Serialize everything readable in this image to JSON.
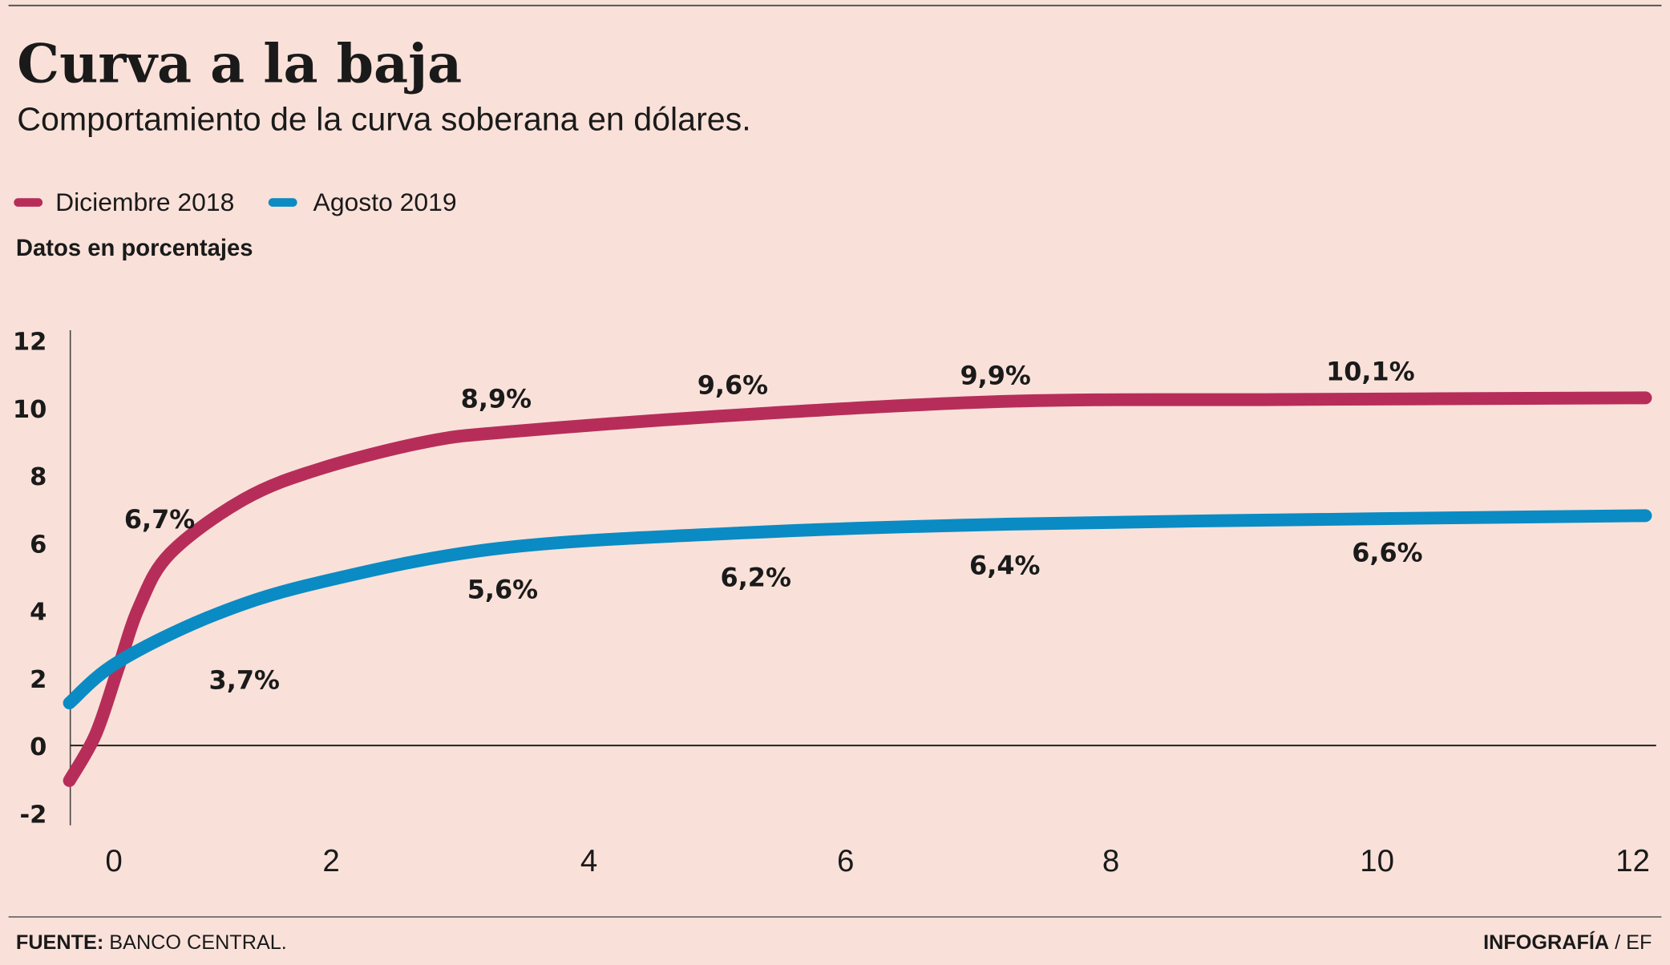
{
  "chart_data": {
    "type": "line",
    "title": "Curva a la baja",
    "subtitle": "Comportamiento de la curva soberana en dólares.",
    "ylabel": "Datos en porcentajes",
    "xlabel": "",
    "ylim": [
      -2,
      12
    ],
    "xlim": [
      -0.4,
      12
    ],
    "y_ticks": [
      "12",
      "10",
      "8",
      "6",
      "4",
      "2",
      "0",
      "-2"
    ],
    "y_tick_values": [
      12,
      10,
      8,
      6,
      4,
      2,
      0,
      -2
    ],
    "x_ticks": [
      "0",
      "2",
      "4",
      "6",
      "8",
      "10",
      "12"
    ],
    "x_tick_values": [
      0,
      2,
      4,
      6,
      8,
      10,
      12
    ],
    "legend_position": "top-left",
    "series": [
      {
        "name": "Diciembre 2018",
        "color": "#b72d5a",
        "points": [
          [
            -0.41,
            -1.04
          ],
          [
            -0.17,
            0.32
          ],
          [
            0.03,
            2.2
          ],
          [
            0.23,
            4.1
          ],
          [
            0.52,
            5.7
          ],
          [
            1.2,
            7.3
          ],
          [
            1.9,
            8.2
          ],
          [
            2.74,
            9.0
          ],
          [
            3.4,
            9.3
          ],
          [
            5.2,
            9.8
          ],
          [
            7.25,
            10.2
          ],
          [
            9.26,
            10.25
          ],
          [
            12.1,
            10.3
          ]
        ],
        "labels": [
          {
            "text": "6,7%",
            "x": 0.42,
            "y": 6.72
          },
          {
            "text": "8,9%",
            "x": 3.28,
            "y": 10.3
          },
          {
            "text": "9,6%",
            "x": 5.12,
            "y": 10.7
          },
          {
            "text": "9,9%",
            "x": 7.13,
            "y": 10.98
          },
          {
            "text": "10,1%",
            "x": 9.95,
            "y": 11.1
          }
        ]
      },
      {
        "name": "Agosto 2019",
        "color": "#0a8bc4",
        "points": [
          [
            -0.41,
            1.26
          ],
          [
            0.03,
            2.46
          ],
          [
            0.91,
            3.85
          ],
          [
            1.89,
            4.83
          ],
          [
            3.3,
            5.84
          ],
          [
            5.2,
            6.3
          ],
          [
            7.25,
            6.56
          ],
          [
            10.03,
            6.72
          ],
          [
            12.1,
            6.81
          ]
        ],
        "labels": [
          {
            "text": "3,7%",
            "x": 1.2,
            "y": 1.96
          },
          {
            "text": "5,6%",
            "x": 3.33,
            "y": 4.64
          },
          {
            "text": "6,2%",
            "x": 5.3,
            "y": 5.0
          },
          {
            "text": "6,4%",
            "x": 7.2,
            "y": 5.36
          },
          {
            "text": "6,6%",
            "x": 10.08,
            "y": 5.74
          }
        ]
      }
    ]
  },
  "footer": {
    "source_label": "FUENTE:",
    "source": "BANCO CENTRAL.",
    "credit_label": "INFOGRAFÍA",
    "credit": "/ EF"
  }
}
